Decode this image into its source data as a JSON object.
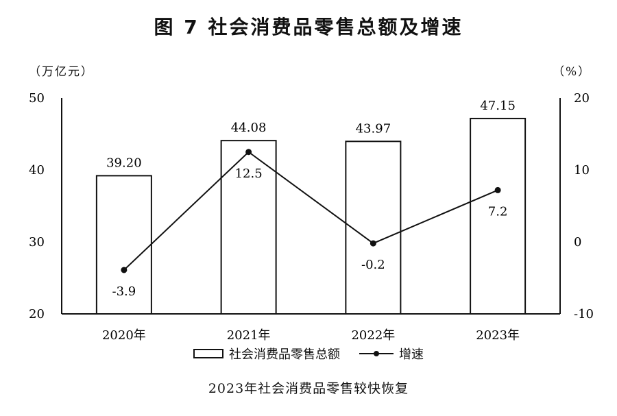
{
  "title": "图 7   社会消费品零售总额及增速",
  "subtitle": "2023年社会消费品零售较快恢复",
  "chart_data": {
    "type": "bar",
    "categories": [
      "2020年",
      "2021年",
      "2022年",
      "2023年"
    ],
    "series": [
      {
        "name": "社会消费品零售总额",
        "type": "bar",
        "axis": "left",
        "values": [
          39.2,
          44.08,
          43.97,
          47.15
        ],
        "labels": [
          "39.20",
          "44.08",
          "43.97",
          "47.15"
        ]
      },
      {
        "name": "增速",
        "type": "line",
        "axis": "right",
        "values": [
          -3.9,
          12.5,
          -0.2,
          7.2
        ],
        "labels": [
          "-3.9",
          "12.5",
          "-0.2",
          "7.2"
        ]
      }
    ],
    "y_left": {
      "unit": "（万亿元）",
      "ylim": [
        20,
        50
      ],
      "ticks": [
        "20",
        "30",
        "40",
        "50"
      ]
    },
    "y_right": {
      "unit": "（%）",
      "ylim": [
        -10,
        20
      ],
      "ticks": [
        "-10",
        "0",
        "10",
        "20"
      ]
    },
    "legend_position": "bottom-center",
    "grid": false
  }
}
